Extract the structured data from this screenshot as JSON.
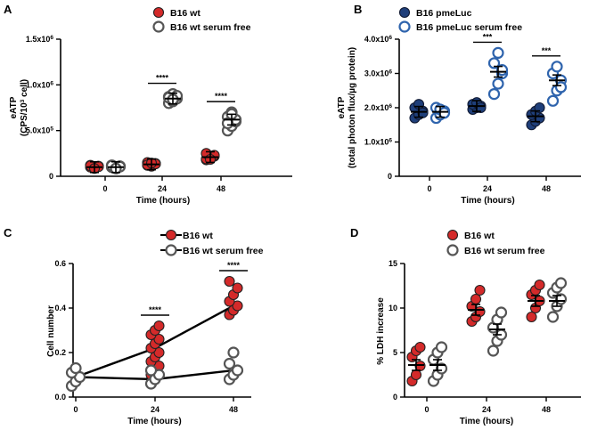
{
  "chart_data": [
    {
      "panel": "A",
      "type": "scatter",
      "categories": [
        "0",
        "24",
        "48"
      ],
      "xlabel": "Time (hours)",
      "ylabel": [
        "eATP",
        "(CPS/10",
        "3",
        " cell)"
      ],
      "ylim": [
        0,
        1500000
      ],
      "yticks": [
        {
          "value": 0,
          "parts": [
            "0"
          ]
        },
        {
          "value": 500000,
          "parts": [
            "5.0x10",
            "5"
          ]
        },
        {
          "value": 1000000,
          "parts": [
            "1.0x10",
            "6"
          ]
        },
        {
          "value": 1500000,
          "parts": [
            "1.5x10",
            "6"
          ]
        }
      ],
      "legend_position": "top-left",
      "series": [
        {
          "name": "B16 wt",
          "style": "filled-red",
          "points": [
            [
              100000,
              90000,
              110000,
              120000,
              95000,
              105000,
              115000,
              85000
            ],
            [
              120000,
              130000,
              140000,
              150000,
              110000,
              135000,
              125000,
              145000
            ],
            [
              180000,
              200000,
              220000,
              190000,
              210000,
              230000,
              250000,
              185000
            ]
          ],
          "means": [
            100000,
            130000,
            210000
          ]
        },
        {
          "name": "B16 wt serum free",
          "style": "open-grey",
          "points": [
            [
              100000,
              90000,
              110000,
              120000,
              95000,
              105000,
              115000,
              85000
            ],
            [
              800000,
              820000,
              850000,
              870000,
              900000,
              880000,
              860000,
              840000
            ],
            [
              500000,
              550000,
              600000,
              650000,
              700000,
              620000,
              580000,
              680000
            ]
          ],
          "means": [
            100000,
            850000,
            620000
          ]
        }
      ],
      "significance": [
        {
          "category": "24",
          "label": "****"
        },
        {
          "category": "48",
          "label": "****"
        }
      ]
    },
    {
      "panel": "B",
      "type": "scatter",
      "categories": [
        "0",
        "24",
        "48"
      ],
      "xlabel": "Time (hours)",
      "ylabel": [
        "eATP",
        "(total photon flux/µg protein)"
      ],
      "ylim": [
        0,
        4000000
      ],
      "yticks": [
        {
          "value": 0,
          "parts": [
            "0"
          ]
        },
        {
          "value": 1000000,
          "parts": [
            "1.0x10",
            "6"
          ]
        },
        {
          "value": 2000000,
          "parts": [
            "2.0x10",
            "6"
          ]
        },
        {
          "value": 3000000,
          "parts": [
            "3.0x10",
            "6"
          ]
        },
        {
          "value": 4000000,
          "parts": [
            "4.0x10",
            "6"
          ]
        }
      ],
      "legend_position": "top-left",
      "series": [
        {
          "name": "B16 pmeLuc",
          "style": "filled-navy",
          "points": [
            [
              1700000,
              1800000,
              1900000,
              2000000,
              2100000,
              1850000
            ],
            [
              1950000,
              2000000,
              2050000,
              2100000,
              2150000,
              2000000
            ],
            [
              1500000,
              1600000,
              1700000,
              1800000,
              1900000,
              2000000
            ]
          ],
          "means": [
            1880000,
            2050000,
            1750000
          ]
        },
        {
          "name": "B16 pmeLuc serum free",
          "style": "open-blue",
          "points": [
            [
              1700000,
              1800000,
              1900000,
              2000000,
              1950000,
              1850000
            ],
            [
              2400000,
              2700000,
              3000000,
              3300000,
              3600000,
              3100000
            ],
            [
              2200000,
              2500000,
              2800000,
              3000000,
              3200000,
              2600000
            ]
          ],
          "means": [
            1880000,
            3050000,
            2800000
          ]
        }
      ],
      "significance": [
        {
          "category": "24",
          "label": "***"
        },
        {
          "category": "48",
          "label": "***"
        }
      ]
    },
    {
      "panel": "C",
      "type": "line",
      "x": [
        0,
        24,
        48
      ],
      "xticks": [
        "0",
        "24",
        "48"
      ],
      "xlabel": "Time (hours)",
      "ylabel": [
        "Cell number"
      ],
      "ylim": [
        0,
        0.6
      ],
      "yticks": [
        {
          "value": 0,
          "parts": [
            "0.0"
          ]
        },
        {
          "value": 0.2,
          "parts": [
            "0.2"
          ]
        },
        {
          "value": 0.4,
          "parts": [
            "0.4"
          ]
        },
        {
          "value": 0.6,
          "parts": [
            "0.6"
          ]
        }
      ],
      "legend_position": "top-center",
      "series": [
        {
          "name": "B16 wt",
          "style": "filled-red",
          "points": [
            [
              0.05,
              0.07,
              0.09,
              0.11,
              0.13
            ],
            [
              0.1,
              0.12,
              0.14,
              0.16,
              0.18,
              0.2,
              0.22,
              0.24,
              0.26,
              0.28,
              0.3,
              0.32
            ],
            [
              0.37,
              0.39,
              0.41,
              0.43,
              0.46,
              0.49,
              0.52
            ]
          ],
          "means": [
            0.09,
            0.22,
            0.41
          ]
        },
        {
          "name": "B16 wt serum free",
          "style": "open-grey",
          "points": [
            [
              0.05,
              0.07,
              0.09,
              0.11,
              0.13
            ],
            [
              0.06,
              0.08,
              0.1,
              0.12
            ],
            [
              0.08,
              0.1,
              0.12,
              0.15,
              0.2
            ]
          ],
          "means": [
            0.09,
            0.08,
            0.12
          ]
        }
      ],
      "significance": [
        {
          "category": "24",
          "label": "****"
        },
        {
          "category": "48",
          "label": "****"
        }
      ]
    },
    {
      "panel": "D",
      "type": "scatter",
      "categories": [
        "0",
        "24",
        "48"
      ],
      "xlabel": "Time (hours)",
      "ylabel": [
        "% LDH increase"
      ],
      "ylim": [
        0,
        15
      ],
      "yticks": [
        {
          "value": 0,
          "parts": [
            "0"
          ]
        },
        {
          "value": 5,
          "parts": [
            "5"
          ]
        },
        {
          "value": 10,
          "parts": [
            "10"
          ]
        },
        {
          "value": 15,
          "parts": [
            "15"
          ]
        }
      ],
      "legend_position": "top-left",
      "series": [
        {
          "name": "B16 wt",
          "style": "filled-red",
          "points": [
            [
              1.8,
              2.5,
              3.5,
              4.5,
              5.2,
              5.6
            ],
            [
              8.5,
              9.0,
              9.6,
              10.2,
              11.0,
              12.0
            ],
            [
              9.0,
              10.0,
              10.8,
              11.5,
              12.0,
              12.6
            ]
          ],
          "means": [
            3.6,
            9.8,
            10.8
          ]
        },
        {
          "name": "B16 wt serum free",
          "style": "open-grey",
          "points": [
            [
              1.8,
              2.5,
              3.2,
              4.2,
              5.0,
              5.6
            ],
            [
              5.2,
              6.3,
              7.0,
              7.8,
              8.7,
              9.5
            ],
            [
              9.0,
              10.2,
              11.0,
              11.7,
              12.3,
              12.8
            ]
          ],
          "means": [
            3.6,
            7.6,
            10.8
          ]
        }
      ],
      "significance": []
    }
  ],
  "palette": {
    "red": "#d42a2a",
    "grey": "#555555",
    "navy": "#1f3f7a",
    "blue": "#2f64ad",
    "axis": "#000000"
  }
}
